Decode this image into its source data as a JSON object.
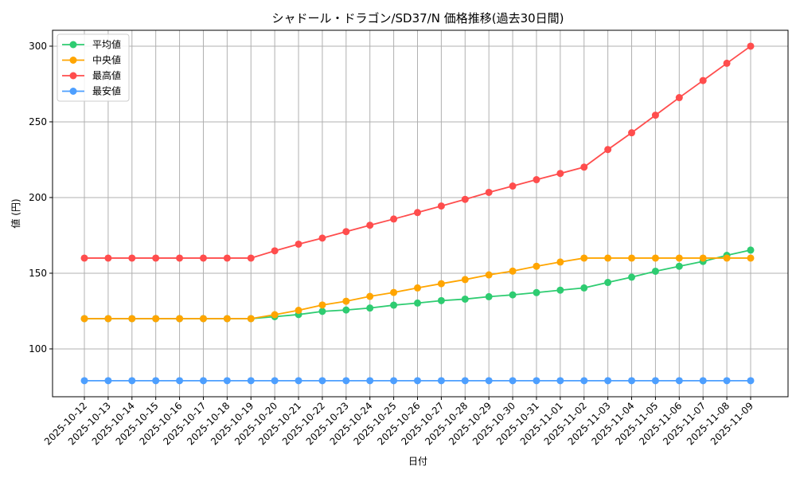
{
  "chart_data": {
    "type": "line",
    "title": "シャドール・ドラゴン/SD37/N 価格推移(過去30日間)",
    "xlabel": "日付",
    "ylabel": "値 (円)",
    "ylim": [
      68.4,
      310.5
    ],
    "yticks": [
      100,
      150,
      200,
      250,
      300
    ],
    "grid": true,
    "legend_position": "top-left",
    "x": [
      "2025-10-12",
      "2025-10-13",
      "2025-10-14",
      "2025-10-15",
      "2025-10-16",
      "2025-10-17",
      "2025-10-18",
      "2025-10-19",
      "2025-10-20",
      "2025-10-21",
      "2025-10-22",
      "2025-10-23",
      "2025-10-24",
      "2025-10-25",
      "2025-10-26",
      "2025-10-27",
      "2025-10-28",
      "2025-10-29",
      "2025-10-30",
      "2025-10-31",
      "2025-11-01",
      "2025-11-02",
      "2025-11-03",
      "2025-11-04",
      "2025-11-05",
      "2025-11-06",
      "2025-11-07",
      "2025-11-08",
      "2025-11-09"
    ],
    "series": [
      {
        "name": "平均値",
        "color": "#2ecc71",
        "values": [
          120,
          120,
          120,
          120,
          120,
          120,
          120,
          120,
          121.3,
          122.7,
          124.8,
          125.7,
          127,
          128.9,
          130.3,
          131.9,
          132.9,
          134.5,
          135.7,
          137.2,
          138.8,
          140.3,
          143.9,
          147.4,
          151.3,
          154.6,
          157.8,
          161.8,
          165.3
        ]
      },
      {
        "name": "中央値",
        "color": "#ffa500",
        "values": [
          120,
          120,
          120,
          120,
          120,
          120,
          120,
          120,
          122.6,
          125.5,
          129,
          131.5,
          134.7,
          137.3,
          140.3,
          143.1,
          145.8,
          148.9,
          151.4,
          154.6,
          157.4,
          160,
          160,
          160,
          160,
          160,
          160,
          160,
          160
        ]
      },
      {
        "name": "最高値",
        "color": "#ff4d4d",
        "values": [
          160,
          160,
          160,
          160,
          160,
          160,
          160,
          160,
          164.8,
          169.2,
          173.2,
          177.5,
          181.7,
          185.8,
          190.1,
          194.4,
          198.8,
          203.4,
          207.6,
          211.8,
          215.9,
          220.1,
          231.7,
          242.8,
          254.4,
          266,
          277.3,
          288.7,
          300
        ]
      },
      {
        "name": "最安値",
        "color": "#4d9fff",
        "values": [
          79,
          79,
          79,
          79,
          79,
          79,
          79,
          79,
          79,
          79,
          79,
          79,
          79,
          79,
          79,
          79,
          79,
          79,
          79,
          79,
          79,
          79,
          79,
          79,
          79,
          79,
          79,
          79,
          79
        ]
      }
    ]
  }
}
